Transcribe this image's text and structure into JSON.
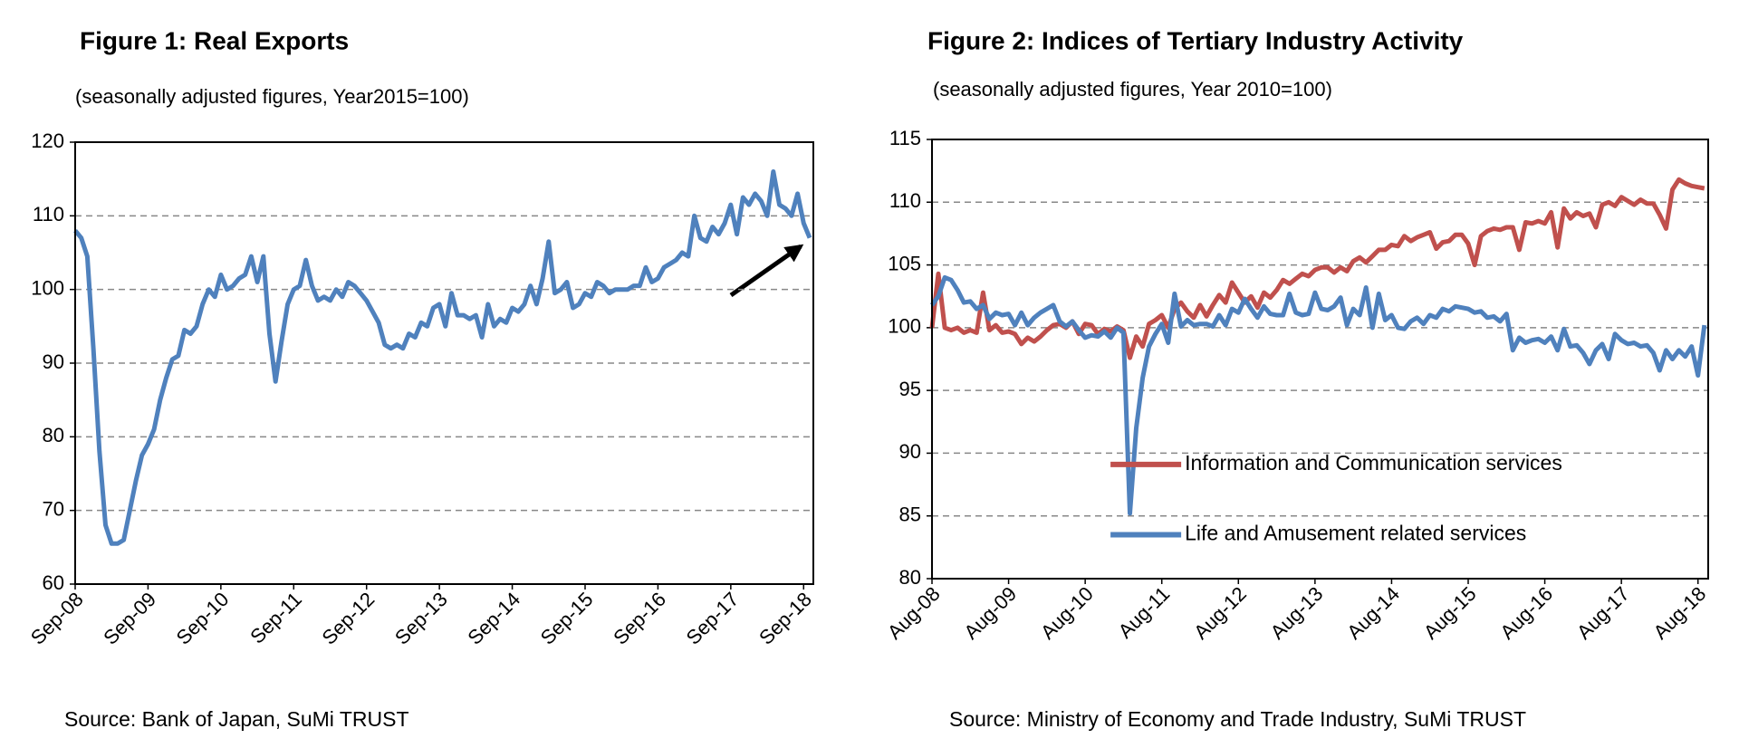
{
  "chart_data": [
    {
      "type": "line",
      "title": "Figure 1: Real Exports",
      "subtitle": "(seasonally adjusted figures, Year2015=100)",
      "source": "Source: Bank of Japan, SuMi TRUST",
      "categories": [
        "Sep-08",
        null,
        null,
        null,
        null,
        null,
        null,
        null,
        null,
        null,
        null,
        null,
        "Sep-09",
        null,
        null,
        null,
        null,
        null,
        null,
        null,
        null,
        null,
        null,
        null,
        "Sep-10",
        null,
        null,
        null,
        null,
        null,
        null,
        null,
        null,
        null,
        null,
        null,
        "Sep-11",
        null,
        null,
        null,
        null,
        null,
        null,
        null,
        null,
        null,
        null,
        null,
        "Sep-12",
        null,
        null,
        null,
        null,
        null,
        null,
        null,
        null,
        null,
        null,
        null,
        "Sep-13",
        null,
        null,
        null,
        null,
        null,
        null,
        null,
        null,
        null,
        null,
        null,
        "Sep-14",
        null,
        null,
        null,
        null,
        null,
        null,
        null,
        null,
        null,
        null,
        null,
        "Sep-15",
        null,
        null,
        null,
        null,
        null,
        null,
        null,
        null,
        null,
        null,
        null,
        "Sep-16",
        null,
        null,
        null,
        null,
        null,
        null,
        null,
        null,
        null,
        null,
        null,
        "Sep-17",
        null,
        null,
        null,
        null,
        null,
        null,
        null,
        null,
        null,
        null,
        null,
        "Sep-18",
        null
      ],
      "values": [
        108,
        107,
        104.5,
        92,
        78,
        68,
        65.5,
        65.5,
        66,
        70,
        74,
        77.5,
        79,
        81,
        85,
        88,
        90.5,
        91,
        94.5,
        94,
        95,
        98,
        100,
        99,
        102,
        100,
        100.5,
        101.5,
        102,
        104.5,
        101,
        104.5,
        94,
        87.5,
        93,
        98,
        100,
        100.5,
        104,
        100.5,
        98.5,
        99,
        98.5,
        100,
        99,
        101,
        100.5,
        99.5,
        98.5,
        97,
        95.5,
        92.5,
        92,
        92.5,
        92,
        94,
        93.5,
        95.5,
        95,
        97.5,
        98,
        95,
        99.5,
        96.5,
        96.5,
        96,
        96.5,
        93.5,
        98,
        95,
        96,
        95.5,
        97.5,
        97,
        98,
        100.5,
        98,
        101.5,
        106.5,
        99.5,
        100,
        101,
        97.5,
        98,
        99.5,
        99,
        101,
        100.5,
        99.5,
        100,
        100,
        100,
        100.5,
        100.5,
        103,
        101,
        101.5,
        103,
        103.5,
        104,
        105,
        104.5,
        110,
        107,
        106.5,
        108.5,
        107.5,
        109,
        111.5,
        107.5,
        112.5,
        111.5,
        113,
        112,
        110,
        116,
        111.5,
        111,
        110,
        113,
        109,
        107
      ],
      "color": "#4f81bd",
      "ylim": [
        60,
        120
      ],
      "yticks": [
        60,
        70,
        80,
        90,
        100,
        110,
        120
      ],
      "grid": true
    },
    {
      "type": "line",
      "title": "Figure 2: Indices of Tertiary Industry Activity",
      "subtitle": "(seasonally adjusted figures, Year 2010=100)",
      "source": "Source: Ministry of Economy and Trade Industry, SuMi TRUST",
      "categories": [
        "Aug-08",
        null,
        null,
        null,
        null,
        null,
        null,
        null,
        null,
        null,
        null,
        null,
        "Aug-09",
        null,
        null,
        null,
        null,
        null,
        null,
        null,
        null,
        null,
        null,
        null,
        "Aug-10",
        null,
        null,
        null,
        null,
        null,
        null,
        null,
        null,
        null,
        null,
        null,
        "Aug-11",
        null,
        null,
        null,
        null,
        null,
        null,
        null,
        null,
        null,
        null,
        null,
        "Aug-12",
        null,
        null,
        null,
        null,
        null,
        null,
        null,
        null,
        null,
        null,
        null,
        "Aug-13",
        null,
        null,
        null,
        null,
        null,
        null,
        null,
        null,
        null,
        null,
        null,
        "Aug-14",
        null,
        null,
        null,
        null,
        null,
        null,
        null,
        null,
        null,
        null,
        null,
        "Aug-15",
        null,
        null,
        null,
        null,
        null,
        null,
        null,
        null,
        null,
        null,
        null,
        "Aug-16",
        null,
        null,
        null,
        null,
        null,
        null,
        null,
        null,
        null,
        null,
        null,
        "Aug-17",
        null,
        null,
        null,
        null,
        null,
        null,
        null,
        null,
        null,
        null,
        null,
        "Aug-18",
        null
      ],
      "series": [
        {
          "name": "Information and Communication services",
          "color": "#c0504d",
          "values": [
            100,
            104.3,
            100,
            99.8,
            100,
            99.6,
            99.8,
            99.6,
            102.8,
            99.8,
            100.2,
            99.6,
            99.7,
            99.5,
            98.7,
            99.2,
            98.9,
            99.3,
            99.8,
            100.2,
            100.3,
            100,
            100.5,
            99.5,
            100.3,
            100.2,
            99.5,
            99.9,
            99.7,
            100.1,
            99.8,
            97.6,
            99.3,
            98.5,
            100.3,
            100.6,
            101,
            100,
            101.5,
            102,
            101.3,
            100.8,
            101.8,
            100.9,
            101.8,
            102.6,
            102,
            103.6,
            102.8,
            102,
            102.5,
            101.6,
            102.8,
            102.4,
            103,
            103.8,
            103.5,
            103.9,
            104.3,
            104.1,
            104.6,
            104.8,
            104.8,
            104.4,
            104.8,
            104.5,
            105.3,
            105.6,
            105.2,
            105.7,
            106.2,
            106.2,
            106.6,
            106.5,
            107.3,
            106.9,
            107.2,
            107.4,
            107.6,
            106.3,
            106.8,
            106.9,
            107.4,
            107.4,
            106.7,
            105,
            107.3,
            107.7,
            107.9,
            107.8,
            108,
            108,
            106.2,
            108.4,
            108.3,
            108.5,
            108.3,
            109.2,
            106.4,
            109.5,
            108.7,
            109.2,
            108.9,
            109.1,
            108,
            109.8,
            110,
            109.7,
            110.4,
            110.1,
            109.8,
            110.2,
            109.9,
            109.9,
            109,
            107.9,
            111,
            111.8,
            111.5,
            111.3,
            111.2,
            111.1
          ]
        },
        {
          "name": "Life and Amusement related services",
          "color": "#4f81bd",
          "values": [
            101.8,
            102.5,
            104,
            103.8,
            103,
            102,
            102.1,
            101.5,
            101.8,
            100.7,
            101.2,
            101,
            101.1,
            100.2,
            101.2,
            100.2,
            100.8,
            101.2,
            101.5,
            101.8,
            100.5,
            100.1,
            100.5,
            99.8,
            99.2,
            99.4,
            99.3,
            99.7,
            99.2,
            100,
            99.6,
            85.2,
            92,
            96,
            98.5,
            99.5,
            100.3,
            98.8,
            102.7,
            100.1,
            100.6,
            100.2,
            100.3,
            100.3,
            100.1,
            101,
            100.2,
            101.5,
            101.2,
            102.3,
            101.5,
            100.8,
            101.7,
            101.1,
            101,
            101,
            102.7,
            101.2,
            101,
            101.1,
            102.8,
            101.5,
            101.4,
            101.7,
            102.4,
            100.2,
            101.5,
            101,
            103.2,
            100,
            102.7,
            100.6,
            101,
            100,
            99.9,
            100.5,
            100.8,
            100.3,
            101,
            100.8,
            101.5,
            101.3,
            101.7,
            101.6,
            101.5,
            101.2,
            101.3,
            100.8,
            100.9,
            100.5,
            101.1,
            98.2,
            99.2,
            98.8,
            99,
            99.1,
            98.8,
            99.3,
            98.2,
            99.9,
            98.5,
            98.6,
            98,
            97.1,
            98.2,
            98.7,
            97.5,
            99.5,
            99,
            98.7,
            98.8,
            98.5,
            98.6,
            98,
            96.6,
            98.2,
            97.5,
            98.2,
            97.7,
            98.5,
            96.2,
            100.2
          ]
        }
      ],
      "ylim": [
        80,
        115
      ],
      "yticks": [
        80,
        85,
        90,
        95,
        100,
        105,
        110,
        115
      ],
      "grid": true,
      "legend": "lower center"
    }
  ]
}
